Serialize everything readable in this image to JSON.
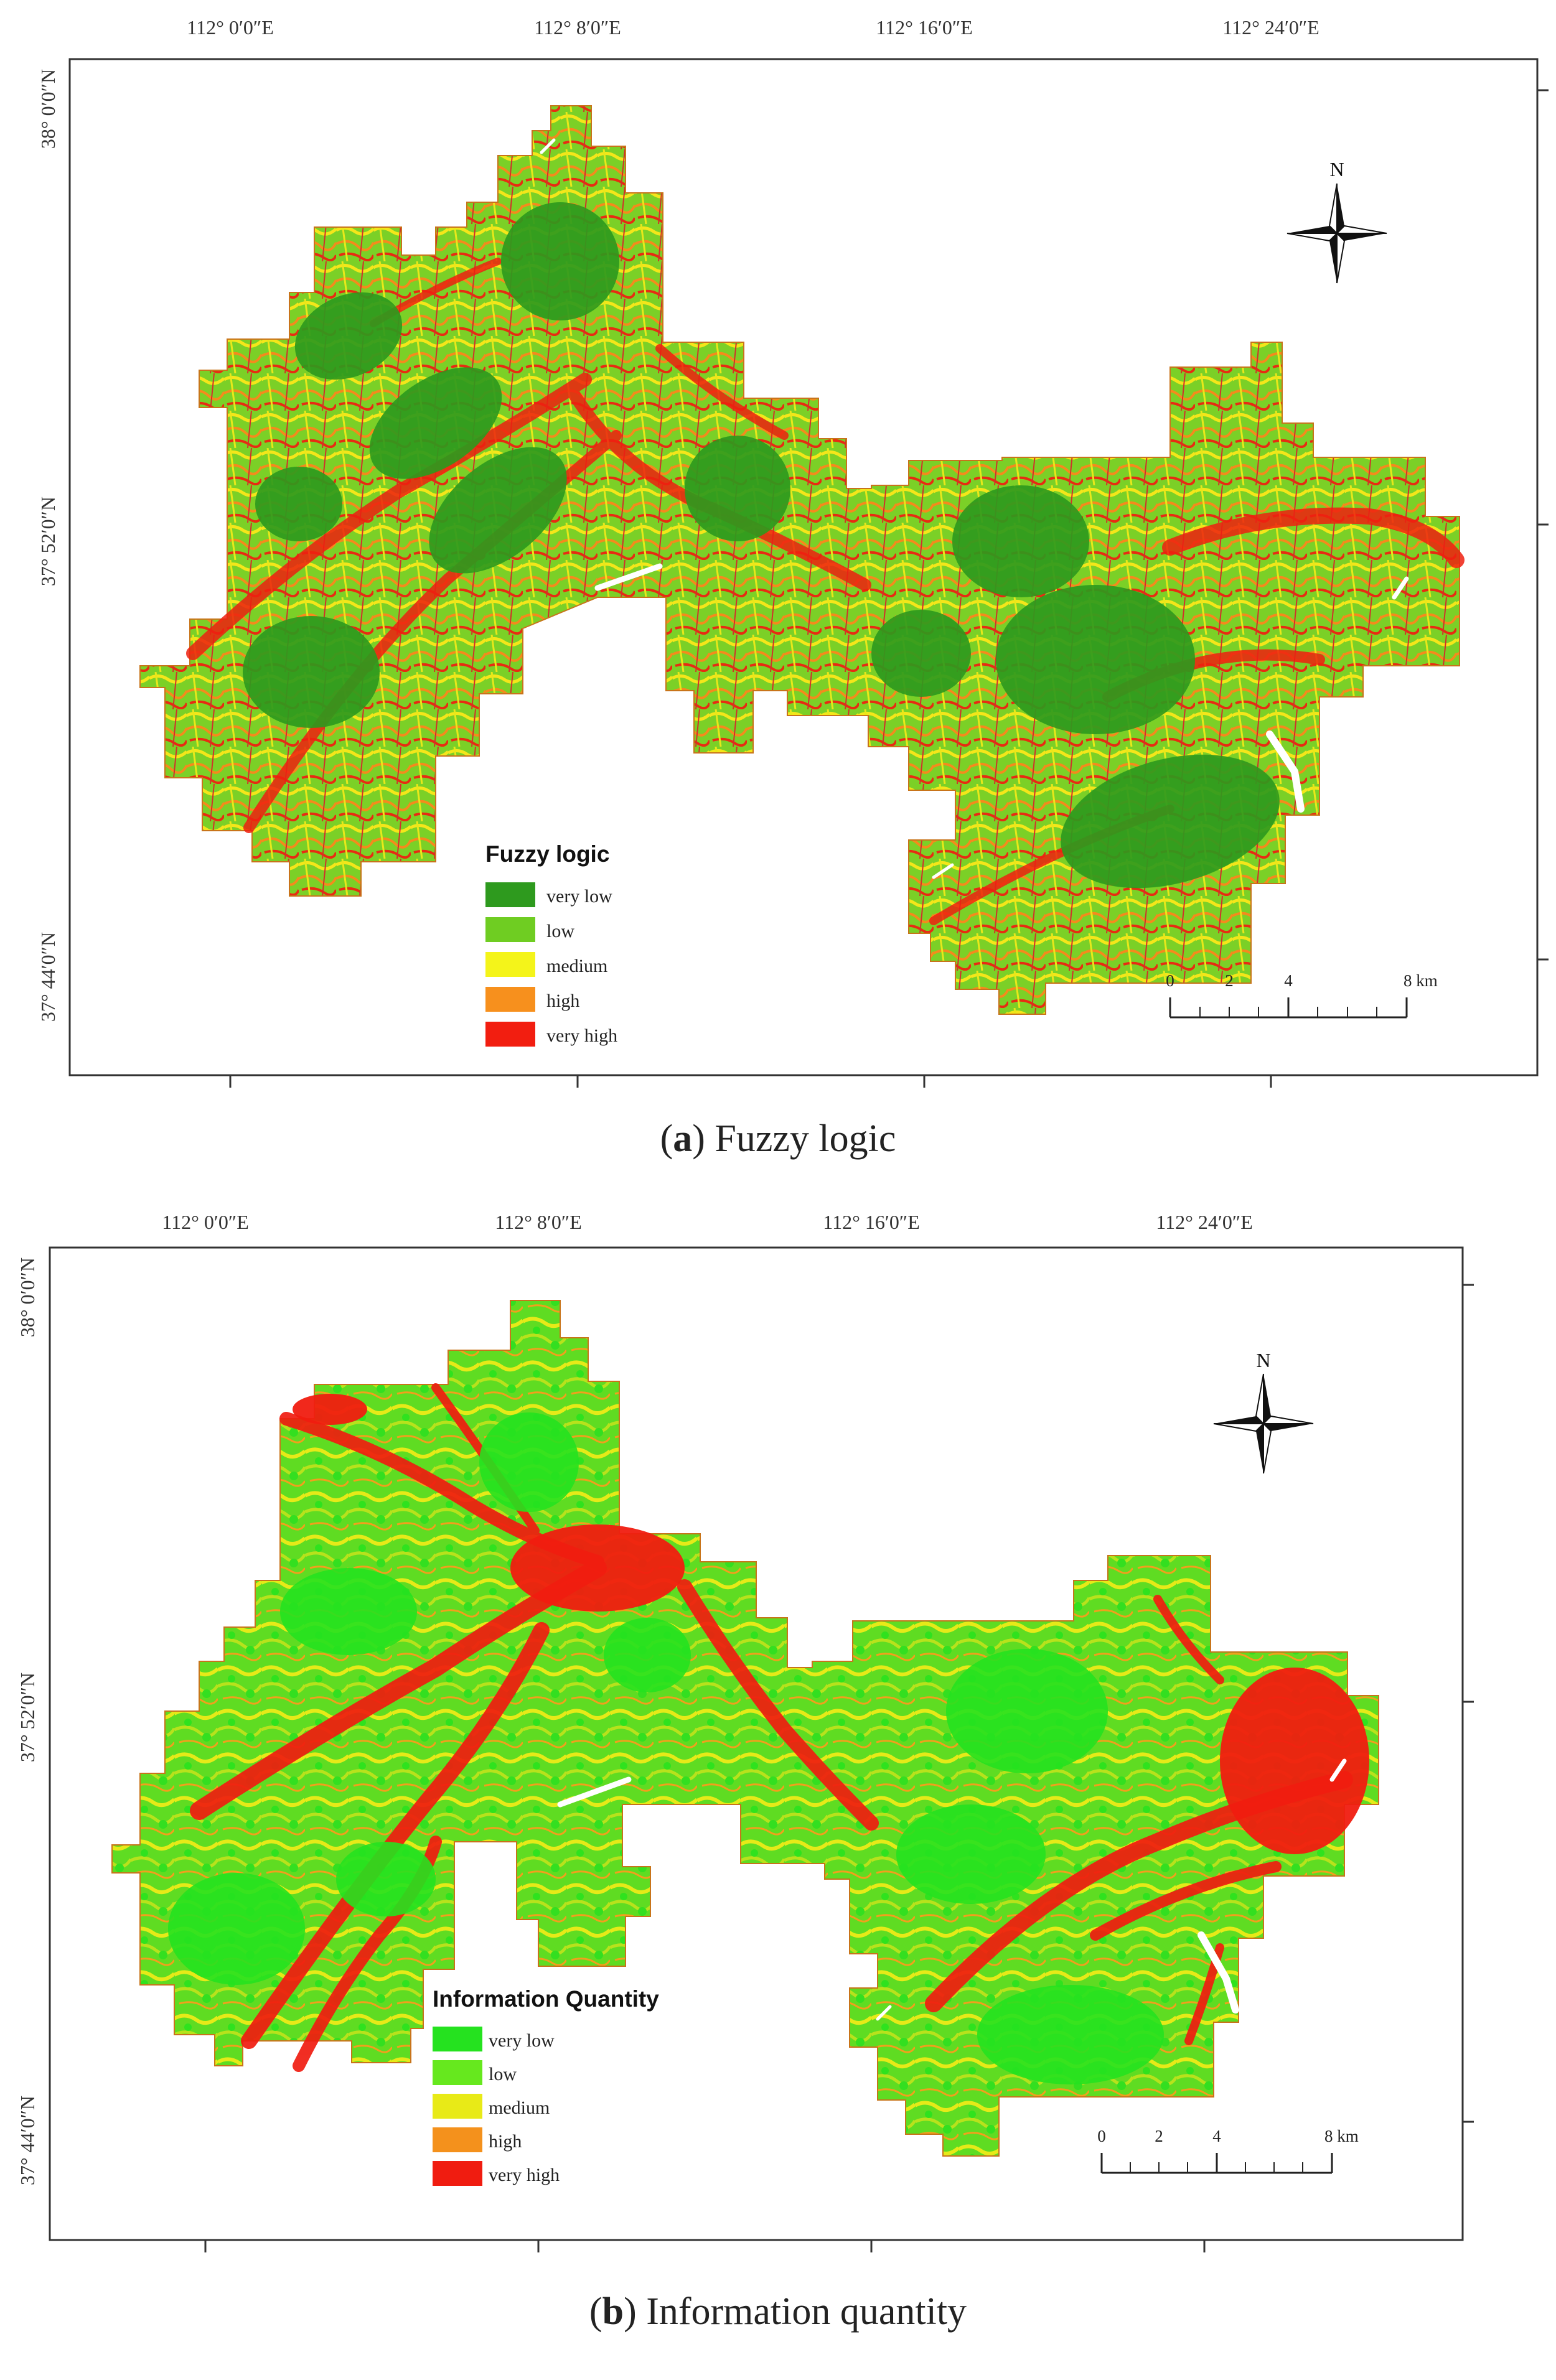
{
  "panels": [
    {
      "id": "a",
      "caption_letter": "a",
      "caption_text": " Fuzzy logic",
      "lon_labels": [
        "112° 0′0″E",
        "112° 8′0″E",
        "112° 16′0″E",
        "112° 24′0″E"
      ],
      "lat_labels": [
        "38° 0′0″N",
        "37° 52′0″N",
        "37° 44′0″N"
      ],
      "north": "N",
      "scale_labels": [
        "0",
        "2",
        "4",
        "8 km"
      ],
      "legend_title": "Fuzzy logic",
      "legend": [
        {
          "label": "very low",
          "color": "#2e9a1e"
        },
        {
          "label": "low",
          "color": "#6fcd22"
        },
        {
          "label": "medium",
          "color": "#f4f41a"
        },
        {
          "label": "high",
          "color": "#f7901d"
        },
        {
          "label": "very high",
          "color": "#f21e10"
        }
      ]
    },
    {
      "id": "b",
      "caption_letter": "b",
      "caption_text": " Information quantity",
      "lon_labels": [
        "112° 0′0″E",
        "112° 8′0″E",
        "112° 16′0″E",
        "112° 24′0″E"
      ],
      "lat_labels": [
        "38° 0′0″N",
        "37° 52′0″N",
        "37° 44′0″N"
      ],
      "north": "N",
      "scale_labels": [
        "0",
        "2",
        "4",
        "8 km"
      ],
      "legend_title": "Information Quantity",
      "legend": [
        {
          "label": "very low",
          "color": "#25e21f"
        },
        {
          "label": "low",
          "color": "#66e81e"
        },
        {
          "label": "medium",
          "color": "#e8ea17"
        },
        {
          "label": "high",
          "color": "#f4911c"
        },
        {
          "label": "very high",
          "color": "#f01c10"
        }
      ]
    }
  ]
}
